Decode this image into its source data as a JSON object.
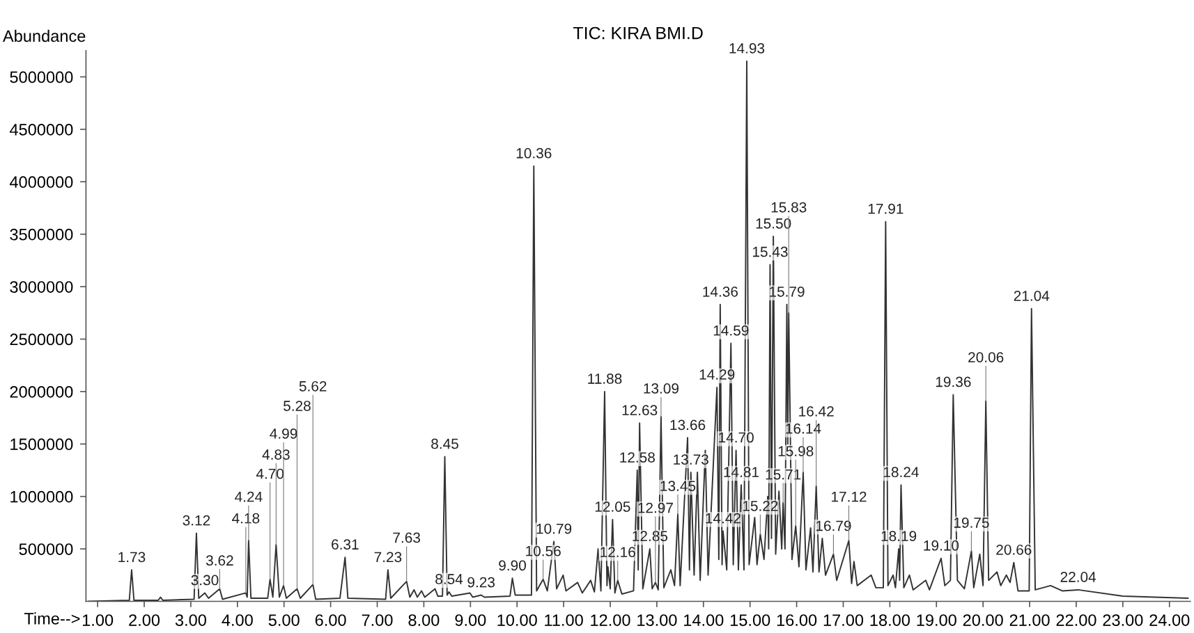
{
  "chart_data": {
    "type": "line",
    "title": "TIC: KIRA BMI.D",
    "xlabel": "Time-->",
    "ylabel": "Abundance",
    "xlim": [
      0.75,
      24.45
    ],
    "ylim": [
      0,
      5250000
    ],
    "xticks": [
      {
        "value": 1,
        "label": "1.00"
      },
      {
        "value": 2,
        "label": "2.00"
      },
      {
        "value": 3,
        "label": "3.00"
      },
      {
        "value": 4,
        "label": "4.00"
      },
      {
        "value": 5,
        "label": "5.00"
      },
      {
        "value": 6,
        "label": "6.00"
      },
      {
        "value": 7,
        "label": "7.00"
      },
      {
        "value": 8,
        "label": "8.00"
      },
      {
        "value": 9,
        "label": "9.00"
      },
      {
        "value": 10,
        "label": "10.00"
      },
      {
        "value": 11,
        "label": "11.00"
      },
      {
        "value": 12,
        "label": "12.00"
      },
      {
        "value": 13,
        "label": "13.00"
      },
      {
        "value": 14,
        "label": "14.00"
      },
      {
        "value": 15,
        "label": "15.00"
      },
      {
        "value": 16,
        "label": "16.00"
      },
      {
        "value": 17,
        "label": "17.00"
      },
      {
        "value": 18,
        "label": "18.00"
      },
      {
        "value": 19,
        "label": "19.00"
      },
      {
        "value": 20,
        "label": "20.00"
      },
      {
        "value": 21,
        "label": "21.00"
      },
      {
        "value": 22,
        "label": "22.00"
      },
      {
        "value": 23,
        "label": "23.00"
      },
      {
        "value": 24,
        "label": "24.00"
      }
    ],
    "yticks": [
      500000,
      1000000,
      1500000,
      2000000,
      2500000,
      3000000,
      3500000,
      4000000,
      4500000,
      5000000
    ],
    "grid": false,
    "legend": false,
    "marker": "none",
    "line_style": "solid",
    "series": [
      {
        "color": "#333333",
        "x": [
          0.8,
          1.68,
          1.73,
          1.78,
          2.3,
          2.35,
          2.4,
          3.07,
          3.12,
          3.17,
          3.3,
          3.38,
          3.62,
          3.68,
          4.18,
          4.21,
          4.24,
          4.29,
          4.65,
          4.7,
          4.76,
          4.83,
          4.9,
          4.99,
          5.05,
          5.28,
          5.35,
          5.62,
          5.68,
          6.2,
          6.31,
          6.37,
          7.18,
          7.23,
          7.29,
          7.63,
          7.7,
          7.79,
          7.86,
          7.95,
          8.02,
          8.24,
          8.3,
          8.4,
          8.45,
          8.5,
          8.54,
          8.6,
          8.99,
          9.05,
          9.23,
          9.3,
          9.85,
          9.9,
          9.96,
          10.31,
          10.36,
          10.42,
          10.56,
          10.65,
          10.79,
          10.85,
          10.99,
          11.05,
          11.3,
          11.4,
          11.58,
          11.66,
          11.74,
          11.8,
          11.88,
          11.93,
          11.95,
          12.0,
          12.05,
          12.1,
          12.16,
          12.25,
          12.5,
          12.58,
          12.6,
          12.63,
          12.7,
          12.85,
          12.9,
          12.97,
          13.03,
          13.09,
          13.15,
          13.3,
          13.38,
          13.45,
          13.5,
          13.66,
          13.7,
          13.73,
          13.8,
          13.87,
          13.93,
          14.04,
          14.1,
          14.29,
          14.33,
          14.36,
          14.4,
          14.42,
          14.5,
          14.59,
          14.64,
          14.7,
          14.75,
          14.81,
          14.87,
          14.93,
          14.98,
          15.1,
          15.15,
          15.22,
          15.3,
          15.38,
          15.4,
          15.43,
          15.46,
          15.5,
          15.55,
          15.62,
          15.68,
          15.71,
          15.75,
          15.79,
          15.81,
          15.83,
          15.9,
          15.98,
          16.05,
          16.14,
          16.2,
          16.3,
          16.35,
          16.42,
          16.48,
          16.55,
          16.62,
          16.79,
          16.86,
          17.12,
          17.18,
          17.23,
          17.3,
          17.6,
          17.7,
          17.86,
          17.91,
          17.96,
          18.07,
          18.12,
          18.19,
          18.21,
          18.24,
          18.3,
          18.42,
          18.5,
          18.77,
          18.85,
          19.1,
          19.18,
          19.3,
          19.36,
          19.45,
          19.6,
          19.75,
          19.8,
          19.93,
          20.0,
          20.06,
          20.12,
          20.3,
          20.38,
          20.5,
          20.58,
          20.66,
          20.75,
          20.99,
          21.04,
          21.12,
          21.45,
          21.7,
          22.04,
          23.0,
          24.4
        ],
        "values": [
          0,
          10000,
          300000,
          10000,
          10000,
          40000,
          10000,
          20000,
          650000,
          30000,
          80000,
          30000,
          120000,
          20000,
          80000,
          40000,
          580000,
          30000,
          30000,
          210000,
          40000,
          540000,
          40000,
          150000,
          30000,
          120000,
          30000,
          160000,
          20000,
          30000,
          420000,
          30000,
          20000,
          300000,
          30000,
          190000,
          40000,
          110000,
          40000,
          100000,
          40000,
          120000,
          50000,
          50000,
          1380000,
          60000,
          90000,
          50000,
          80000,
          40000,
          60000,
          40000,
          50000,
          220000,
          60000,
          60000,
          4150000,
          100000,
          210000,
          100000,
          570000,
          120000,
          250000,
          100000,
          180000,
          80000,
          200000,
          90000,
          500000,
          100000,
          2000000,
          150000,
          330000,
          120000,
          780000,
          80000,
          200000,
          70000,
          100000,
          1250000,
          300000,
          1700000,
          120000,
          500000,
          120000,
          180000,
          110000,
          1760000,
          130000,
          300000,
          150000,
          830000,
          150000,
          1560000,
          300000,
          1230000,
          250000,
          1230000,
          200000,
          1440000,
          250000,
          2040000,
          400000,
          2830000,
          350000,
          670000,
          300000,
          2460000,
          350000,
          1440000,
          300000,
          1110000,
          300000,
          5150000,
          350000,
          800000,
          350000,
          640000,
          400000,
          1000000,
          500000,
          3210000,
          600000,
          3480000,
          450000,
          1050000,
          500000,
          940000,
          500000,
          2830000,
          1500000,
          2750000,
          400000,
          720000,
          330000,
          1230000,
          300000,
          700000,
          280000,
          1100000,
          280000,
          600000,
          250000,
          450000,
          200000,
          580000,
          170000,
          380000,
          150000,
          250000,
          130000,
          130000,
          3620000,
          150000,
          250000,
          130000,
          500000,
          200000,
          1110000,
          130000,
          250000,
          110000,
          200000,
          110000,
          410000,
          150000,
          200000,
          1970000,
          200000,
          120000,
          480000,
          130000,
          450000,
          150000,
          1910000,
          200000,
          280000,
          150000,
          250000,
          180000,
          370000,
          100000,
          100000,
          2790000,
          110000,
          150000,
          100000,
          110000,
          50000,
          30000
        ]
      }
    ],
    "annotations": [
      {
        "text": "1.73",
        "x": 1.73,
        "y": 300000
      },
      {
        "text": "3.12",
        "x": 3.12,
        "y": 650000
      },
      {
        "text": "3.30",
        "x": 3.3,
        "y": 80000
      },
      {
        "text": "3.62",
        "x": 3.62,
        "y": 120000
      },
      {
        "text": "4.18",
        "x": 4.18,
        "y": 80000
      },
      {
        "text": "4.24",
        "x": 4.24,
        "y": 580000
      },
      {
        "text": "4.70",
        "x": 4.7,
        "y": 210000
      },
      {
        "text": "4.83",
        "x": 4.83,
        "y": 540000
      },
      {
        "text": "4.99",
        "x": 4.99,
        "y": 150000
      },
      {
        "text": "5.28",
        "x": 5.28,
        "y": 120000
      },
      {
        "text": "5.62",
        "x": 5.62,
        "y": 160000
      },
      {
        "text": "6.31",
        "x": 6.31,
        "y": 420000
      },
      {
        "text": "7.23",
        "x": 7.23,
        "y": 300000
      },
      {
        "text": "7.63",
        "x": 7.63,
        "y": 190000
      },
      {
        "text": "8.45",
        "x": 8.45,
        "y": 1380000
      },
      {
        "text": "8.54",
        "x": 8.54,
        "y": 90000
      },
      {
        "text": "9.23",
        "x": 9.23,
        "y": 60000
      },
      {
        "text": "9.90",
        "x": 9.9,
        "y": 220000
      },
      {
        "text": "10.36",
        "x": 10.36,
        "y": 4150000
      },
      {
        "text": "10.56",
        "x": 10.56,
        "y": 210000
      },
      {
        "text": "10.79",
        "x": 10.79,
        "y": 570000
      },
      {
        "text": "11.88",
        "x": 11.88,
        "y": 2000000
      },
      {
        "text": "12.05",
        "x": 12.05,
        "y": 780000
      },
      {
        "text": "12.16",
        "x": 12.16,
        "y": 200000
      },
      {
        "text": "12.58",
        "x": 12.58,
        "y": 1250000
      },
      {
        "text": "12.63",
        "x": 12.63,
        "y": 1700000
      },
      {
        "text": "12.85",
        "x": 12.85,
        "y": 500000
      },
      {
        "text": "12.97",
        "x": 12.97,
        "y": 180000
      },
      {
        "text": "13.09",
        "x": 13.09,
        "y": 1760000
      },
      {
        "text": "13.45",
        "x": 13.45,
        "y": 830000
      },
      {
        "text": "13.66",
        "x": 13.66,
        "y": 1560000
      },
      {
        "text": "13.73",
        "x": 13.73,
        "y": 1230000
      },
      {
        "text": "14.29",
        "x": 14.29,
        "y": 2040000
      },
      {
        "text": "14.36",
        "x": 14.36,
        "y": 2830000
      },
      {
        "text": "14.42",
        "x": 14.42,
        "y": 670000
      },
      {
        "text": "14.59",
        "x": 14.59,
        "y": 2460000
      },
      {
        "text": "14.70",
        "x": 14.7,
        "y": 1440000
      },
      {
        "text": "14.81",
        "x": 14.81,
        "y": 1110000
      },
      {
        "text": "14.93",
        "x": 14.93,
        "y": 5150000
      },
      {
        "text": "15.22",
        "x": 15.22,
        "y": 640000
      },
      {
        "text": "15.43",
        "x": 15.43,
        "y": 3210000
      },
      {
        "text": "15.50",
        "x": 15.5,
        "y": 3480000
      },
      {
        "text": "15.71",
        "x": 15.71,
        "y": 940000
      },
      {
        "text": "15.79",
        "x": 15.79,
        "y": 2830000
      },
      {
        "text": "15.83",
        "x": 15.83,
        "y": 2750000
      },
      {
        "text": "15.98",
        "x": 15.98,
        "y": 720000
      },
      {
        "text": "16.14",
        "x": 16.14,
        "y": 1230000
      },
      {
        "text": "16.42",
        "x": 16.42,
        "y": 1100000
      },
      {
        "text": "16.79",
        "x": 16.79,
        "y": 450000
      },
      {
        "text": "17.12",
        "x": 17.12,
        "y": 580000
      },
      {
        "text": "17.91",
        "x": 17.91,
        "y": 3620000
      },
      {
        "text": "18.19",
        "x": 18.19,
        "y": 500000
      },
      {
        "text": "18.24",
        "x": 18.24,
        "y": 1110000
      },
      {
        "text": "19.10",
        "x": 19.1,
        "y": 410000
      },
      {
        "text": "19.36",
        "x": 19.36,
        "y": 1970000
      },
      {
        "text": "19.75",
        "x": 19.75,
        "y": 480000
      },
      {
        "text": "20.06",
        "x": 20.06,
        "y": 1910000
      },
      {
        "text": "20.66",
        "x": 20.66,
        "y": 370000
      },
      {
        "text": "21.04",
        "x": 21.04,
        "y": 2790000
      },
      {
        "text": "22.04",
        "x": 22.04,
        "y": 110000
      }
    ]
  }
}
